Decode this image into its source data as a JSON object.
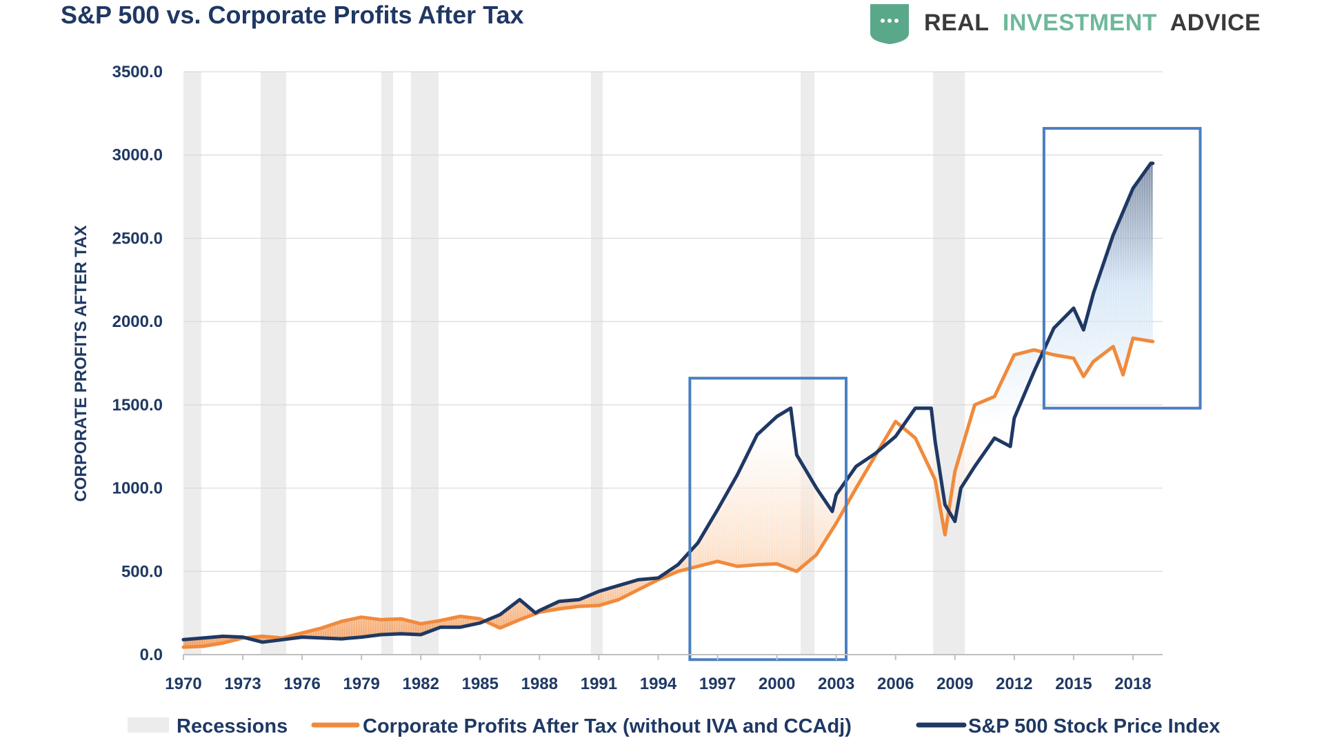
{
  "header": {
    "title": "S&P 500 vs. Corporate Profits After Tax",
    "brand_real": "REAL",
    "brand_investment": "INVESTMENT",
    "brand_advice": "ADVICE",
    "brand_icon": "shield-chat-icon",
    "brand_colors": {
      "dark": "#3a3a3a",
      "green": "#6fb89a",
      "shield": "#5aa88a"
    }
  },
  "chart_data": {
    "type": "line",
    "title": "S&P 500 vs. Corporate Profits After Tax",
    "ylabel": "CORPORATE PROFITS AFTER TAX",
    "xlabel": "",
    "ylim": [
      0,
      3500
    ],
    "xlim": [
      1970,
      2019.5
    ],
    "yticks": [
      "0.0",
      "500.0",
      "1000.0",
      "1500.0",
      "2000.0",
      "2500.0",
      "3000.0",
      "3500.0"
    ],
    "xticks": [
      "1970",
      "1973",
      "1976",
      "1979",
      "1982",
      "1985",
      "1988",
      "1991",
      "1994",
      "1997",
      "2000",
      "2003",
      "2006",
      "2009",
      "2012",
      "2015",
      "2018"
    ],
    "grid": true,
    "legend_position": "bottom",
    "colors": {
      "profits": "#f08a3c",
      "sp500": "#1f3864",
      "recession": "#ececec",
      "highlight_box": "#4a7fc1",
      "grid": "#d9d9d9"
    },
    "recessions": [
      [
        1970.0,
        1970.9
      ],
      [
        1973.9,
        1975.2
      ],
      [
        1980.0,
        1980.6
      ],
      [
        1981.5,
        1982.9
      ],
      [
        1990.6,
        1991.2
      ],
      [
        2001.2,
        2001.9
      ],
      [
        2007.9,
        2009.5
      ]
    ],
    "highlights": [
      {
        "x": [
          1995.6,
          2003.5
        ],
        "y": [
          -30,
          1660
        ]
      },
      {
        "x": [
          2013.5,
          2021.4
        ],
        "y": [
          1480,
          3160
        ]
      }
    ],
    "series": [
      {
        "name": "Corporate Profits After Tax (without IVA and CCAdj)",
        "x": [
          1970,
          1971,
          1972,
          1973,
          1974,
          1975,
          1976,
          1977,
          1978,
          1979,
          1980,
          1981,
          1982,
          1983,
          1984,
          1985,
          1986,
          1987,
          1988,
          1989,
          1990,
          1991,
          1992,
          1993,
          1994,
          1995,
          1996,
          1997,
          1998,
          1999,
          2000,
          2001,
          2002,
          2003,
          2004,
          2005,
          2006,
          2007,
          2008,
          2008.5,
          2009,
          2010,
          2011,
          2012,
          2013,
          2014,
          2015,
          2015.5,
          2016,
          2017,
          2017.5,
          2018,
          2019
        ],
        "values": [
          45,
          50,
          70,
          100,
          110,
          100,
          130,
          160,
          200,
          225,
          210,
          215,
          185,
          205,
          230,
          215,
          160,
          210,
          255,
          275,
          290,
          295,
          330,
          390,
          450,
          500,
          530,
          560,
          530,
          540,
          545,
          500,
          600,
          790,
          1000,
          1200,
          1400,
          1300,
          1050,
          720,
          1100,
          1500,
          1550,
          1800,
          1830,
          1800,
          1780,
          1670,
          1760,
          1850,
          1680,
          1900,
          1880
        ]
      },
      {
        "name": "S&P 500 Stock Price Index",
        "x": [
          1970,
          1971,
          1972,
          1973,
          1974,
          1975,
          1976,
          1977,
          1978,
          1979,
          1980,
          1981,
          1982,
          1983,
          1984,
          1985,
          1986,
          1987,
          1987.8,
          1988,
          1989,
          1990,
          1991,
          1992,
          1993,
          1994,
          1995,
          1996,
          1997,
          1998,
          1999,
          2000,
          2000.7,
          2001,
          2002,
          2002.8,
          2003,
          2004,
          2005,
          2006,
          2007,
          2007.8,
          2008,
          2008.5,
          2009,
          2009.3,
          2010,
          2011,
          2011.8,
          2012,
          2013,
          2014,
          2015,
          2015.5,
          2016,
          2017,
          2018,
          2018.9,
          2019
        ],
        "values": [
          90,
          100,
          110,
          105,
          75,
          90,
          105,
          100,
          95,
          105,
          120,
          125,
          120,
          165,
          165,
          190,
          240,
          330,
          250,
          265,
          320,
          330,
          380,
          415,
          450,
          460,
          540,
          670,
          870,
          1080,
          1320,
          1430,
          1480,
          1200,
          1000,
          860,
          960,
          1130,
          1210,
          1310,
          1480,
          1480,
          1280,
          900,
          800,
          1000,
          1130,
          1300,
          1250,
          1420,
          1700,
          1960,
          2080,
          1950,
          2170,
          2520,
          2800,
          2950,
          2950
        ]
      }
    ]
  },
  "legend": [
    {
      "label": "Recessions",
      "kind": "swatch",
      "color": "#ececec"
    },
    {
      "label": "Corporate Profits After Tax (without IVA and CCAdj)",
      "kind": "line",
      "color": "#f08a3c"
    },
    {
      "label": "S&P 500 Stock Price Index",
      "kind": "line",
      "color": "#1f3864"
    }
  ]
}
